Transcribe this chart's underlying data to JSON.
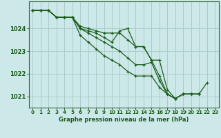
{
  "title": "Graphe pression niveau de la mer (hPa)",
  "bg_color": "#cce8e8",
  "grid_color": "#aacccc",
  "line_color": "#1a5c1a",
  "xlim": [
    -0.5,
    23.5
  ],
  "ylim": [
    1020.5,
    1025.2
  ],
  "yticks": [
    1021,
    1022,
    1023,
    1024
  ],
  "xticks": [
    0,
    1,
    2,
    3,
    4,
    5,
    6,
    7,
    8,
    9,
    10,
    11,
    12,
    13,
    14,
    15,
    16,
    17,
    18,
    19,
    20,
    21,
    22,
    23
  ],
  "series": [
    {
      "x": [
        0,
        1,
        2,
        3,
        4,
        5,
        6,
        7,
        8,
        9,
        10,
        11,
        12,
        13,
        14,
        15,
        16,
        17,
        18,
        19,
        20,
        21
      ],
      "y": [
        1024.8,
        1024.8,
        1024.8,
        1024.5,
        1024.5,
        1024.5,
        1024.1,
        1024.0,
        1023.9,
        1023.8,
        1023.8,
        1023.8,
        1023.5,
        1023.2,
        1023.2,
        1022.6,
        1021.9,
        1021.1,
        1020.9,
        1021.1,
        1021.1,
        1021.1
      ]
    },
    {
      "x": [
        0,
        1,
        2,
        3,
        4,
        5,
        6,
        7,
        8,
        9,
        10,
        11,
        12,
        13,
        14,
        15,
        16,
        17,
        18,
        19,
        20,
        21
      ],
      "y": [
        1024.8,
        1024.8,
        1024.8,
        1024.5,
        1024.5,
        1024.5,
        1024.0,
        1023.8,
        1023.6,
        1023.4,
        1023.2,
        1023.0,
        1022.7,
        1022.4,
        1022.4,
        1022.5,
        1021.7,
        1021.1,
        1020.9,
        1021.1,
        1021.1,
        1021.1
      ]
    },
    {
      "x": [
        0,
        1,
        2,
        3,
        4,
        5,
        6,
        7,
        8,
        9,
        10,
        11,
        12,
        13,
        14,
        15,
        16,
        17,
        18,
        19,
        20,
        21
      ],
      "y": [
        1024.8,
        1024.8,
        1024.8,
        1024.5,
        1024.5,
        1024.5,
        1023.7,
        1023.4,
        1023.1,
        1022.8,
        1022.6,
        1022.4,
        1022.1,
        1021.9,
        1021.9,
        1021.9,
        1021.4,
        1021.1,
        1020.9,
        1021.1,
        1021.1,
        1021.1
      ]
    },
    {
      "x": [
        0,
        1,
        2,
        3,
        4,
        5,
        6,
        7,
        8,
        9,
        10,
        11,
        12,
        13,
        14,
        15,
        16,
        17,
        18,
        19,
        20,
        21,
        22
      ],
      "y": [
        1024.8,
        1024.8,
        1024.8,
        1024.5,
        1024.5,
        1024.5,
        1024.0,
        1023.9,
        1023.8,
        1023.6,
        1023.4,
        1023.9,
        1024.0,
        1023.2,
        1023.2,
        1022.6,
        1022.6,
        1021.3,
        1020.9,
        1021.1,
        1021.1,
        1021.1,
        1021.6
      ]
    }
  ]
}
